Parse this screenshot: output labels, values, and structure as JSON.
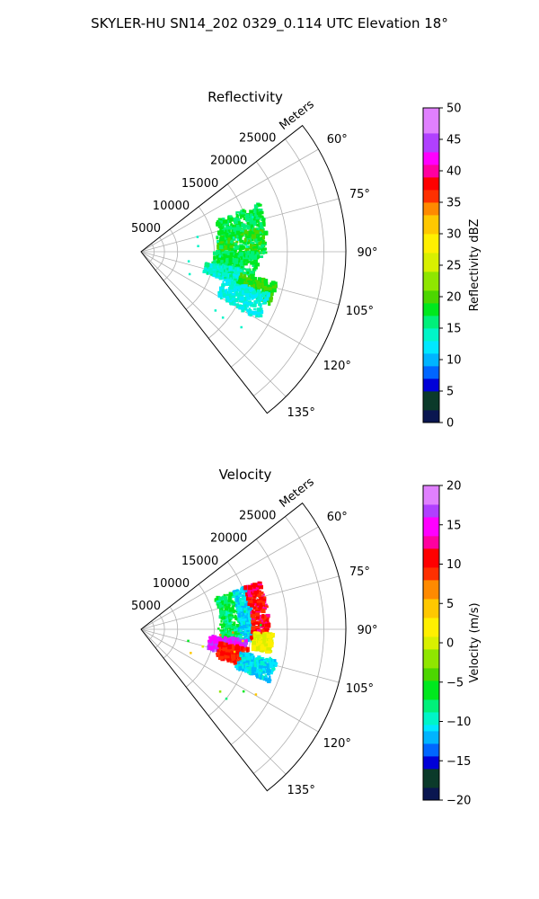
{
  "suptitle": "SKYLER-HU  SN14_202  0329_0.114 UTC Elevation 18°",
  "chart_data": [
    {
      "type": "heatmap",
      "subtype": "polar-sector-ppi",
      "title": "Reflectivity",
      "range_label": "Meters",
      "range_ticks": [
        "5000",
        "10000",
        "15000",
        "20000",
        "25000"
      ],
      "range_values": [
        5000,
        10000,
        15000,
        20000,
        25000
      ],
      "range_max": 28000,
      "theta_ticks": [
        "60°",
        "75°",
        "90°",
        "105°",
        "120°",
        "135°"
      ],
      "theta_values": [
        60,
        75,
        90,
        105,
        120,
        135
      ],
      "theta_range": [
        52,
        142
      ],
      "grid": true,
      "colorbar": {
        "label": "Reflectivity dBZ",
        "min": 0,
        "max": 50,
        "ticks": [
          "0",
          "5",
          "10",
          "15",
          "20",
          "25",
          "30",
          "35",
          "40",
          "45",
          "50"
        ],
        "tick_values": [
          0,
          5,
          10,
          15,
          20,
          25,
          30,
          35,
          40,
          45,
          50
        ]
      },
      "echo_regions": [
        {
          "theta": [
            68,
            82
          ],
          "range": [
            11000,
            17500
          ],
          "value": 17
        },
        {
          "theta": [
            79,
            93
          ],
          "range": [
            10500,
            17000
          ],
          "value": 18
        },
        {
          "theta": [
            90,
            102
          ],
          "range": [
            10000,
            16000
          ],
          "value": 17
        },
        {
          "theta": [
            100,
            108
          ],
          "range": [
            9000,
            14000
          ],
          "value": 14
        },
        {
          "theta": [
            103,
            112
          ],
          "range": [
            14000,
            19000
          ],
          "value": 19
        },
        {
          "theta": [
            108,
            120
          ],
          "range": [
            12000,
            18500
          ],
          "value": 13
        }
      ]
    },
    {
      "type": "heatmap",
      "subtype": "polar-sector-ppi",
      "title": "Velocity",
      "range_label": "Meters",
      "range_ticks": [
        "5000",
        "10000",
        "15000",
        "20000",
        "25000"
      ],
      "range_values": [
        5000,
        10000,
        15000,
        20000,
        25000
      ],
      "range_max": 28000,
      "theta_ticks": [
        "60°",
        "75°",
        "90°",
        "105°",
        "120°",
        "135°"
      ],
      "theta_values": [
        60,
        75,
        90,
        105,
        120,
        135
      ],
      "theta_range": [
        52,
        142
      ],
      "grid": true,
      "colorbar": {
        "label": "Velocity (m/s)",
        "min": -20,
        "max": 20,
        "ticks": [
          "−20",
          "−15",
          "−10",
          "−5",
          "0",
          "5",
          "10",
          "15",
          "20"
        ],
        "tick_values": [
          -20,
          -15,
          -10,
          -5,
          0,
          5,
          10,
          15,
          20
        ]
      },
      "echo_regions": [
        {
          "theta": [
            68,
            96
          ],
          "range": [
            11000,
            14000
          ],
          "value": -7
        },
        {
          "theta": [
            68,
            96
          ],
          "range": [
            13500,
            15500
          ],
          "value": -11
        },
        {
          "theta": [
            68,
            96
          ],
          "range": [
            15200,
            17500
          ],
          "value": 11
        },
        {
          "theta": [
            92,
            100
          ],
          "range": [
            15500,
            18000
          ],
          "value": 1
        },
        {
          "theta": [
            96,
            106
          ],
          "range": [
            9500,
            14500
          ],
          "value": 16
        },
        {
          "theta": [
            100,
            110
          ],
          "range": [
            11000,
            15000
          ],
          "value": 10
        },
        {
          "theta": [
            103,
            112
          ],
          "range": [
            14000,
            19000
          ],
          "value": -11
        }
      ]
    }
  ]
}
